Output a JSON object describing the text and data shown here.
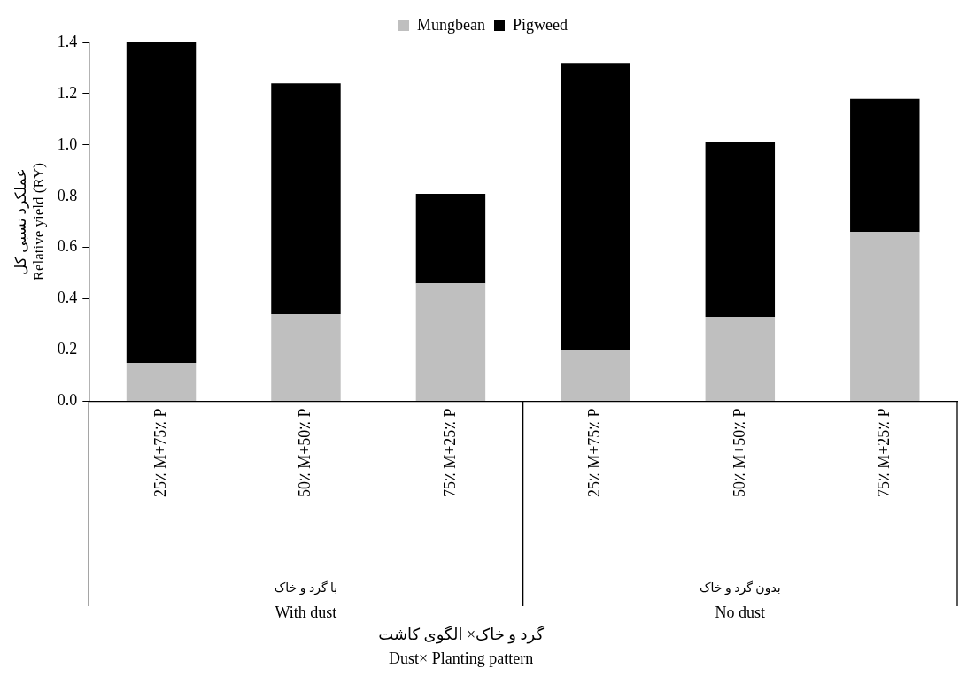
{
  "chart_data": {
    "type": "bar",
    "stacked": true,
    "categories": [
      "25٪ M+75٪ P",
      "50٪ M+50٪ P",
      "75٪ M+25٪ P",
      "25٪ M+75٪ P",
      "50٪ M+50٪ P",
      "75٪ M+25٪ P"
    ],
    "series": [
      {
        "name": "Mungbean",
        "color": "#bfbfbf",
        "values": [
          0.15,
          0.34,
          0.46,
          0.2,
          0.33,
          0.66
        ]
      },
      {
        "name": "Pigweed",
        "color": "#000000",
        "values": [
          1.25,
          0.9,
          0.35,
          1.12,
          0.68,
          0.52
        ]
      }
    ],
    "ylim": [
      0,
      1.4
    ],
    "yticks": [
      {
        "value": 0,
        "label": "0.0"
      },
      0.2,
      0.4,
      0.6,
      0.8,
      {
        "value": 1,
        "label": "1.0"
      },
      1.2,
      1.4
    ],
    "ylabel": "عملکرد نسبی کل\nRelative yield (RY)",
    "annotations": [
      "با گرد و خاک\nWith dust",
      "بدون گرد و خاک\nNo dust",
      "گرد و خاک× الگوی کاشت\nDust× Planting pattern"
    ],
    "grid": false,
    "legend": "top"
  }
}
